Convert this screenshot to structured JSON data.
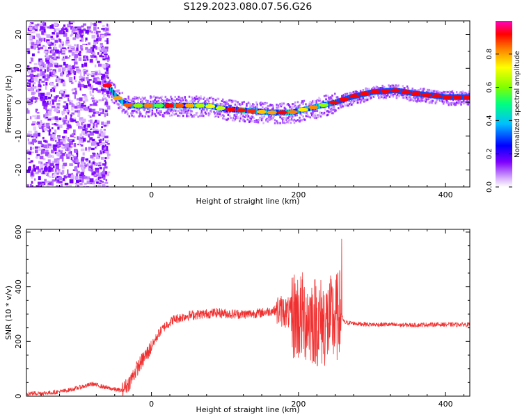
{
  "title": "S129.2023.080.07.56.G26",
  "chart_data": [
    {
      "type": "heatmap",
      "xlabel": "Height of straight line (km)",
      "ylabel": "Frequency (Hz)",
      "xlim": [
        -170,
        433
      ],
      "ylim": [
        -25,
        24
      ],
      "xticks": [
        0,
        200,
        400
      ],
      "yticks": [
        -20,
        -10,
        0,
        10,
        20
      ],
      "colorbar": {
        "label": "Normalized spectral amplitude",
        "range": [
          0,
          1
        ],
        "ticks": [
          "0.0",
          "0.2",
          "0.4",
          "0.6",
          "0.8"
        ],
        "colors": [
          "#ffffff",
          "#d9b3ff",
          "#7f00ff",
          "#0000ff",
          "#00bfff",
          "#00ff80",
          "#80ff00",
          "#ffff00",
          "#ff8000",
          "#ff0000",
          "#ff00c0"
        ]
      },
      "ridge": {
        "x": [
          -60,
          -50,
          -40,
          -30,
          0,
          50,
          75,
          100,
          130,
          160,
          190,
          210,
          230,
          250,
          270,
          300,
          330,
          360,
          400,
          433
        ],
        "y": [
          5,
          2,
          0,
          -1,
          -1,
          -1,
          -1,
          -2,
          -2.5,
          -3,
          -3,
          -2,
          -1,
          0,
          1.5,
          3,
          3.5,
          2.5,
          1.5,
          1.5
        ]
      }
    },
    {
      "type": "line",
      "xlabel": "Height of straight line (km)",
      "ylabel": "SNR (10 * v/v)",
      "xlim": [
        -170,
        433
      ],
      "ylim": [
        0,
        610
      ],
      "xticks": [
        0,
        200,
        400
      ],
      "yticks": [
        0,
        200,
        400,
        600
      ],
      "color": "#f03030",
      "x": [
        -170,
        -140,
        -120,
        -100,
        -80,
        -60,
        -40,
        -30,
        -20,
        -10,
        0,
        10,
        20,
        30,
        50,
        70,
        90,
        110,
        130,
        150,
        160,
        170,
        180,
        190,
        200,
        210,
        220,
        230,
        240,
        250,
        258,
        262,
        280,
        300,
        320,
        340,
        360,
        380,
        400,
        420,
        433
      ],
      "y": [
        10,
        12,
        18,
        30,
        45,
        30,
        20,
        50,
        100,
        140,
        180,
        230,
        260,
        280,
        295,
        300,
        305,
        300,
        300,
        305,
        310,
        315,
        310,
        300,
        290,
        290,
        280,
        270,
        270,
        280,
        300,
        270,
        265,
        262,
        262,
        260,
        260,
        262,
        262,
        262,
        262
      ]
    }
  ]
}
